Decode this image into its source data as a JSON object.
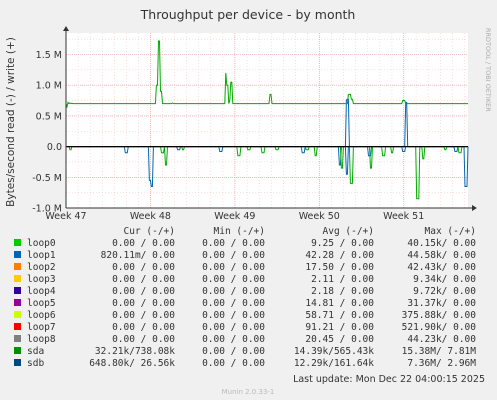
{
  "chart_data": {
    "type": "line",
    "title": "Throughput per device - by month",
    "ylabel": "Bytes/second read (-) / write (+)",
    "side_label": "RRDTOOL / TOBI OETIKER",
    "ylim": [
      -1000000,
      1850000
    ],
    "ytick_values": [
      1500000,
      1000000,
      500000,
      0,
      -500000,
      -1000000
    ],
    "ytick_labels": [
      "1.5 M",
      "1.0 M",
      "0.5 M",
      "0.0",
      "-0.5 M",
      "-1.0 M"
    ],
    "xtick_labels": [
      "Week 47",
      "Week 48",
      "Week 49",
      "Week 50",
      "Week 51"
    ],
    "grid": true,
    "colors": {
      "background": "#f0f0f0",
      "plot_bg": "#ffffff",
      "grid_minor": "#f0c0c0",
      "grid_major": "#e0a0a0",
      "sda": "#00aa00",
      "sdb": "#0066b3",
      "zero": "#000000"
    },
    "series": [
      {
        "name": "sda",
        "color": "#00aa00",
        "write_values": [
          700000,
          650000,
          720000,
          700000,
          710000,
          700000,
          705000,
          700000,
          700000,
          700000,
          700000,
          700000,
          700000,
          700000,
          700000,
          700000,
          700000,
          700000,
          700000,
          700000,
          700000,
          700000,
          700000,
          700000,
          700000,
          700000,
          700000,
          700000,
          700000,
          700000,
          700000,
          700000,
          700000,
          700000,
          700000,
          700000,
          700000,
          700000,
          700000,
          700000,
          700000,
          700000,
          700000,
          700000,
          700000,
          700000,
          700000,
          700000,
          700000,
          700000,
          700000,
          700000,
          700000,
          700000,
          700000,
          700000,
          700000,
          700000,
          700000,
          700000,
          700000,
          700000,
          700000,
          700000,
          700000,
          700000,
          700000,
          700000,
          700000,
          700000,
          700000,
          700000,
          700000,
          700000,
          700000,
          700000,
          700000,
          700000,
          700000,
          700000,
          700000,
          700000,
          700000,
          700000,
          700000,
          700000,
          700000,
          700000,
          700000,
          700000,
          700000,
          700000,
          700000,
          700000,
          700000,
          700000,
          700000,
          700000,
          700000,
          700000,
          710000,
          700000,
          700000,
          700000,
          700000,
          700000,
          700000,
          700000,
          700000,
          700000,
          700000,
          700000,
          700000,
          700000,
          700000,
          700000,
          700000,
          700000,
          700000,
          700000,
          700000,
          700000,
          700000,
          700000,
          700000,
          700000,
          700000,
          700000,
          700000,
          700000,
          700000,
          700000,
          700000,
          700000,
          700000,
          700000,
          700000,
          700000,
          700000,
          700000,
          700000,
          700000,
          700000,
          700000,
          700000,
          700000,
          700000,
          700000,
          700000,
          700000,
          700000,
          700000,
          700000,
          700000,
          700000,
          700000,
          700000,
          700000,
          700000,
          700000,
          700000,
          700000,
          700000,
          700000,
          700000,
          700000,
          700000,
          700000,
          700000,
          700000,
          700000,
          700000,
          700000,
          700000,
          700000,
          700000,
          700000,
          700000,
          700000,
          700000,
          700000,
          700000,
          700000,
          700000,
          700000,
          700000,
          700000,
          700000,
          700000,
          700000,
          700000,
          700000,
          700000,
          700000,
          700000,
          700000,
          700000,
          700000,
          700000,
          700000,
          700000,
          700000,
          700000,
          700000,
          700000,
          700000,
          700000,
          700000,
          700000,
          700000,
          700000,
          700000,
          700000,
          700000,
          700000,
          700000,
          700000,
          700000,
          700000,
          700000,
          700000,
          700000,
          700000,
          700000,
          700000,
          700000,
          700000,
          700000,
          700000,
          700000,
          700000,
          700000,
          700000,
          700000,
          700000,
          700000,
          700000,
          700000,
          700000,
          700000,
          700000,
          700000,
          700000,
          700000,
          700000,
          700000,
          700000,
          700000,
          700000,
          700000,
          700000,
          700000,
          700000,
          700000,
          700000,
          700000,
          700000,
          700000,
          700000,
          700000,
          700000,
          700000,
          700000,
          700000,
          700000,
          700000,
          700000,
          700000,
          700000,
          700000,
          700000,
          700000,
          700000,
          700000,
          700000,
          700000,
          700000,
          700000,
          700000,
          700000,
          700000,
          700000,
          700000,
          700000,
          700000,
          700000,
          700000,
          700000,
          700000,
          700000,
          700000,
          700000,
          700000,
          700000,
          700000,
          700000,
          700000,
          700000,
          700000,
          700000,
          700000,
          700000,
          700000,
          700000,
          700000,
          700000,
          700000,
          700000,
          700000,
          700000,
          700000,
          700000,
          700000,
          700000,
          700000,
          700000,
          700000,
          700000,
          700000,
          700000,
          700000,
          700000,
          700000,
          700000,
          700000,
          700000,
          700000,
          700000,
          700000,
          700000,
          700000,
          700000,
          700000,
          700000,
          700000,
          700000,
          700000,
          700000,
          700000,
          700000,
          700000,
          700000,
          700000,
          700000,
          700000,
          700000,
          700000,
          700000,
          700000,
          700000,
          700000,
          700000,
          700000,
          700000,
          700000,
          700000,
          700000,
          700000,
          700000,
          700000,
          700000,
          700000,
          700000,
          700000,
          700000,
          700000,
          700000,
          700000,
          700000,
          700000,
          700000,
          700000,
          700000,
          700000,
          700000,
          700000,
          700000,
          700000,
          700000,
          700000
        ],
        "write_spikes": [
          [
            0.227,
            1000000
          ],
          [
            0.232,
            1720000
          ],
          [
            0.237,
            900000
          ],
          [
            0.398,
            1200000
          ],
          [
            0.402,
            1000000
          ],
          [
            0.408,
            750000
          ],
          [
            0.412,
            1050000
          ],
          [
            0.508,
            850000
          ],
          [
            0.705,
            850000
          ],
          [
            0.712,
            770000
          ],
          [
            0.823,
            700000
          ],
          [
            0.84,
            750000
          ]
        ],
        "read_dips": [
          [
            0.012,
            -50000
          ],
          [
            0.24,
            -100000
          ],
          [
            0.248,
            -300000
          ],
          [
            0.292,
            -50000
          ],
          [
            0.43,
            -150000
          ],
          [
            0.455,
            -50000
          ],
          [
            0.49,
            -100000
          ],
          [
            0.525,
            -50000
          ],
          [
            0.6,
            -50000
          ],
          [
            0.622,
            -150000
          ],
          [
            0.686,
            -350000
          ],
          [
            0.71,
            -600000
          ],
          [
            0.758,
            -350000
          ],
          [
            0.79,
            -150000
          ],
          [
            0.812,
            -100000
          ],
          [
            0.875,
            -850000
          ],
          [
            0.888,
            -200000
          ],
          [
            0.943,
            -50000
          ],
          [
            0.98,
            -100000
          ]
        ]
      },
      {
        "name": "sdb",
        "color": "#0066b3",
        "write_spikes": [
          [
            0.7,
            760000
          ],
          [
            0.702,
            770000
          ],
          [
            0.846,
            720000
          ]
        ],
        "read_dips": [
          [
            0.15,
            -100000
          ],
          [
            0.21,
            -550000
          ],
          [
            0.213,
            -650000
          ],
          [
            0.28,
            -50000
          ],
          [
            0.385,
            -80000
          ],
          [
            0.59,
            -100000
          ],
          [
            0.682,
            -300000
          ],
          [
            0.698,
            -450000
          ],
          [
            0.755,
            -150000
          ],
          [
            0.84,
            -80000
          ],
          [
            0.97,
            -80000
          ],
          [
            0.995,
            -650000
          ]
        ]
      }
    ],
    "legend": {
      "headers": [
        "Cur (-/+)",
        "Min (-/+)",
        "Avg (-/+)",
        "Max (-/+)"
      ],
      "rows": [
        {
          "name": "loop0",
          "color": "#00cc00",
          "cur": "0.00 /  0.00",
          "min": "0.00 /  0.00",
          "avg": "9.25 /  0.00",
          "max": "40.15k/  0.00"
        },
        {
          "name": "loop1",
          "color": "#0066b3",
          "cur": "820.11m/  0.00",
          "min": "0.00 /  0.00",
          "avg": "42.28 /  0.00",
          "max": "44.58k/  0.00"
        },
        {
          "name": "loop2",
          "color": "#ff8000",
          "cur": "0.00 /  0.00",
          "min": "0.00 /  0.00",
          "avg": "17.50 /  0.00",
          "max": "42.43k/  0.00"
        },
        {
          "name": "loop3",
          "color": "#ffcc00",
          "cur": "0.00 /  0.00",
          "min": "0.00 /  0.00",
          "avg": "2.11 /  0.00",
          "max": "9.34k/  0.00"
        },
        {
          "name": "loop4",
          "color": "#330099",
          "cur": "0.00 /  0.00",
          "min": "0.00 /  0.00",
          "avg": "2.18 /  0.00",
          "max": "9.72k/  0.00"
        },
        {
          "name": "loop5",
          "color": "#990099",
          "cur": "0.00 /  0.00",
          "min": "0.00 /  0.00",
          "avg": "14.81 /  0.00",
          "max": "31.37k/  0.00"
        },
        {
          "name": "loop6",
          "color": "#ccff00",
          "cur": "0.00 /  0.00",
          "min": "0.00 /  0.00",
          "avg": "58.71 /  0.00",
          "max": "375.88k/  0.00"
        },
        {
          "name": "loop7",
          "color": "#ff0000",
          "cur": "0.00 /  0.00",
          "min": "0.00 /  0.00",
          "avg": "91.21 /  0.00",
          "max": "521.90k/  0.00"
        },
        {
          "name": "loop8",
          "color": "#808080",
          "cur": "0.00 /  0.00",
          "min": "0.00 /  0.00",
          "avg": "20.45 /  0.00",
          "max": "44.23k/  0.00"
        },
        {
          "name": "sda",
          "color": "#008f00",
          "cur": "32.21k/738.08k",
          "min": "0.00 /  0.00",
          "avg": "14.39k/565.43k",
          "max": "15.38M/  7.81M"
        },
        {
          "name": "sdb",
          "color": "#00487d",
          "cur": "648.80k/ 26.56k",
          "min": "0.00 /  0.00",
          "avg": "12.29k/161.64k",
          "max": "7.36M/  2.96M"
        }
      ]
    },
    "last_update": "Last update:  Mon Dec 22 04:00:15 2025",
    "footer": "Munin 2.0.33-1"
  }
}
